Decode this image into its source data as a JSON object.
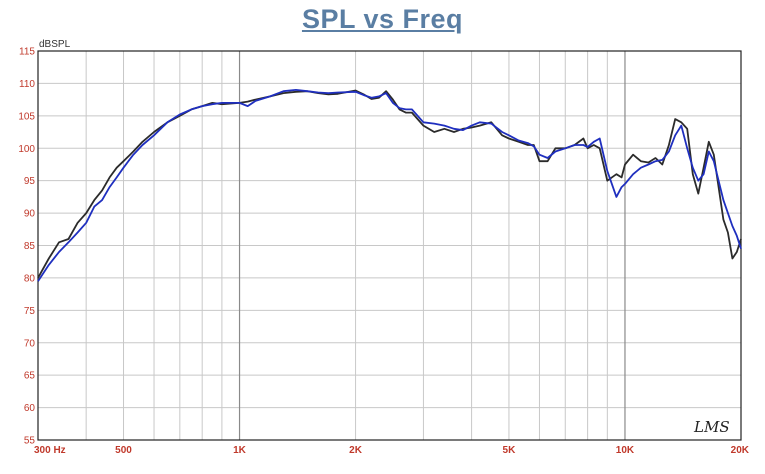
{
  "chart_data": {
    "type": "line",
    "title": "SPL vs Freq",
    "ylabel": "dBSPL",
    "xlabel": "",
    "x_scale": "log",
    "xlim": [
      300,
      20000
    ],
    "ylim": [
      55,
      115
    ],
    "grid": true,
    "y_ticks": [
      "55",
      "60",
      "65",
      "70",
      "75",
      "80",
      "85",
      "90",
      "95",
      "100",
      "105",
      "110",
      "115"
    ],
    "x_ticks": [
      {
        "value": 300,
        "label": "300 Hz"
      },
      {
        "value": 500,
        "label": "500"
      },
      {
        "value": 1000,
        "label": "1K"
      },
      {
        "value": 2000,
        "label": "2K"
      },
      {
        "value": 5000,
        "label": "5K"
      },
      {
        "value": 10000,
        "label": "10K"
      },
      {
        "value": 20000,
        "label": "20K"
      }
    ],
    "watermark": "LMS",
    "colors": {
      "series_black": "#2b2b2b",
      "series_blue": "#1f2fbf",
      "tick_text": "#c0392b",
      "title": "#5a7ea3",
      "grid": "#c8c8c8"
    },
    "series": [
      {
        "color": "#2b2b2b",
        "x": [
          300,
          320,
          340,
          360,
          380,
          400,
          420,
          440,
          460,
          480,
          500,
          530,
          560,
          600,
          650,
          700,
          750,
          800,
          850,
          900,
          1000,
          1050,
          1100,
          1200,
          1300,
          1400,
          1500,
          1600,
          1700,
          1800,
          2000,
          2100,
          2200,
          2300,
          2400,
          2500,
          2600,
          2700,
          2800,
          3000,
          3200,
          3400,
          3600,
          3800,
          4000,
          4200,
          4500,
          4800,
          5000,
          5300,
          5600,
          5800,
          6000,
          6300,
          6600,
          7000,
          7400,
          7800,
          8000,
          8300,
          8600,
          9000,
          9500,
          9800,
          10000,
          10500,
          11000,
          11500,
          12000,
          12500,
          13000,
          13500,
          14000,
          14500,
          15000,
          15500,
          16000,
          16500,
          17000,
          17500,
          18000,
          18500,
          19000,
          19500,
          20000
        ],
        "y": [
          80,
          83,
          85.5,
          86,
          88.5,
          90,
          92,
          93.5,
          95.5,
          97,
          98,
          99.5,
          101,
          102.5,
          104,
          105,
          106,
          106.5,
          107,
          106.8,
          107,
          107.2,
          107.5,
          108,
          108.5,
          108.7,
          108.8,
          108.5,
          108.3,
          108.4,
          108.9,
          108.3,
          107.6,
          107.8,
          108.8,
          107.5,
          106,
          105.5,
          105.5,
          103.5,
          102.5,
          103,
          102.5,
          103,
          103.2,
          103.5,
          104,
          102,
          101.5,
          101,
          100.5,
          100.5,
          98,
          98,
          100,
          100,
          100.5,
          101.5,
          100,
          100.5,
          100,
          95,
          96,
          95.5,
          97.5,
          99,
          98,
          97.8,
          98.5,
          97.5,
          100.5,
          104.5,
          104,
          103,
          96,
          93,
          97,
          101,
          99,
          94,
          89,
          87,
          83,
          84,
          86
        ]
      },
      {
        "color": "#1f2fbf",
        "x": [
          300,
          320,
          340,
          360,
          380,
          400,
          420,
          440,
          460,
          480,
          500,
          530,
          560,
          600,
          650,
          700,
          750,
          800,
          850,
          900,
          1000,
          1050,
          1100,
          1200,
          1300,
          1400,
          1500,
          1600,
          1700,
          1800,
          2000,
          2100,
          2200,
          2300,
          2400,
          2500,
          2600,
          2700,
          2800,
          3000,
          3200,
          3400,
          3600,
          3800,
          4000,
          4200,
          4500,
          4800,
          5000,
          5300,
          5600,
          5800,
          6000,
          6300,
          6600,
          7000,
          7400,
          7800,
          8000,
          8300,
          8600,
          9000,
          9500,
          9800,
          10000,
          10500,
          11000,
          11500,
          12000,
          12500,
          13000,
          13500,
          14000,
          14500,
          15000,
          15500,
          16000,
          16500,
          17000,
          17500,
          18000,
          18500,
          19000,
          19500,
          20000
        ],
        "y": [
          79.5,
          82,
          84,
          85.5,
          87,
          88.5,
          91,
          92,
          94,
          95.5,
          97,
          99,
          100.5,
          102,
          104,
          105.2,
          106,
          106.5,
          106.8,
          107,
          107,
          106.5,
          107.3,
          108,
          108.8,
          109,
          108.8,
          108.6,
          108.5,
          108.6,
          108.7,
          108.2,
          107.8,
          108,
          108.5,
          107,
          106.2,
          106,
          106,
          104,
          103.8,
          103.5,
          103,
          102.8,
          103.5,
          104,
          103.8,
          102.5,
          102,
          101.2,
          100.8,
          100.3,
          99,
          98.5,
          99.5,
          100,
          100.5,
          100.5,
          100.2,
          101,
          101.5,
          96.5,
          92.5,
          94,
          94.5,
          96,
          97,
          97.5,
          98,
          98.2,
          99.5,
          102,
          103.5,
          100,
          97,
          95,
          96,
          99.5,
          98,
          95,
          92,
          90,
          88,
          86.5,
          84.5
        ]
      }
    ]
  }
}
